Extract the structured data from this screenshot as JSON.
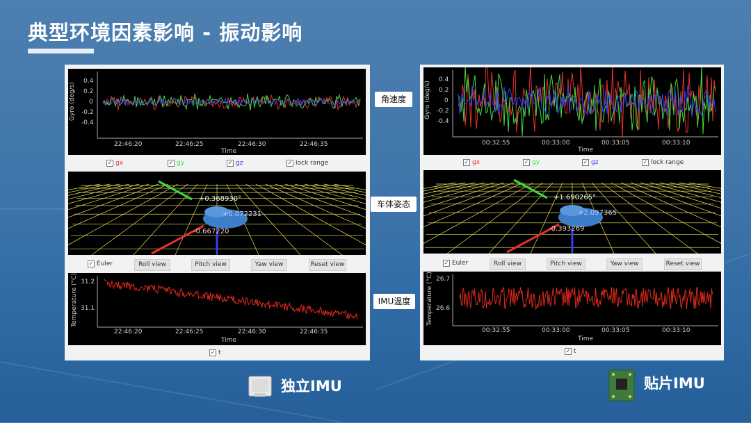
{
  "slide": {
    "title": "典型环境因素影响 - 振动影响",
    "side_labels": [
      "角速度",
      "车体姿态",
      "IMU温度"
    ]
  },
  "colors": {
    "gx": "#e8312e",
    "gy": "#3cdc3c",
    "gz": "#3a3aff",
    "temp": "#e32a1c",
    "grid": "#e9e35a"
  },
  "left": {
    "caption": "独立IMU",
    "gyro": {
      "ylabel": "Gyro (deg/s)",
      "xlabel": "Time",
      "yticks": [
        "0.4",
        "0.2",
        "0",
        "-0.2",
        "-0.4"
      ],
      "xticks": [
        "22:46:20",
        "22:46:25",
        "22:46:30",
        "22:46:35"
      ]
    },
    "legend": {
      "gx": "gx",
      "gy": "gy",
      "gz": "gz",
      "lock": "lock range"
    },
    "attitude": {
      "roll": "+0.368930°",
      "pitch": "+0.072231",
      "yaw": "-0.667220"
    },
    "buttons": {
      "euler": "Euler",
      "roll": "Roll view",
      "pitch": "Pitch view",
      "yaw": "Yaw view",
      "reset": "Reset view"
    },
    "temp": {
      "ylabel": "Temperature (°C)",
      "xlabel": "Time",
      "yticks": [
        "31.2",
        "31.1"
      ],
      "xticks": [
        "22:46:20",
        "22:46:25",
        "22:46:30",
        "22:46:35"
      ],
      "legend": "t"
    }
  },
  "right": {
    "caption": "贴片IMU",
    "gyro": {
      "ylabel": "Gyro (deg/s)",
      "xlabel": "Time",
      "yticks": [
        "0.4",
        "0.2",
        "0",
        "-0.2",
        "-0.4"
      ],
      "xticks": [
        "00:32:55",
        "00:33:00",
        "00:33:05",
        "00:33:10"
      ]
    },
    "legend": {
      "gx": "gx",
      "gy": "gy",
      "gz": "gz",
      "lock": "lock range"
    },
    "attitude": {
      "roll": "+1.690265°",
      "pitch": "+2.097365",
      "yaw": "-0.393269"
    },
    "buttons": {
      "euler": "Euler",
      "roll": "Roll view",
      "pitch": "Pitch view",
      "yaw": "Yaw view",
      "reset": "Reset view"
    },
    "temp": {
      "ylabel": "Temperature (°C)",
      "xlabel": "Time",
      "yticks": [
        "26.7",
        "26.6"
      ],
      "xticks": [
        "00:32:55",
        "00:33:00",
        "00:33:05",
        "00:33:10"
      ],
      "legend": "t"
    }
  }
}
